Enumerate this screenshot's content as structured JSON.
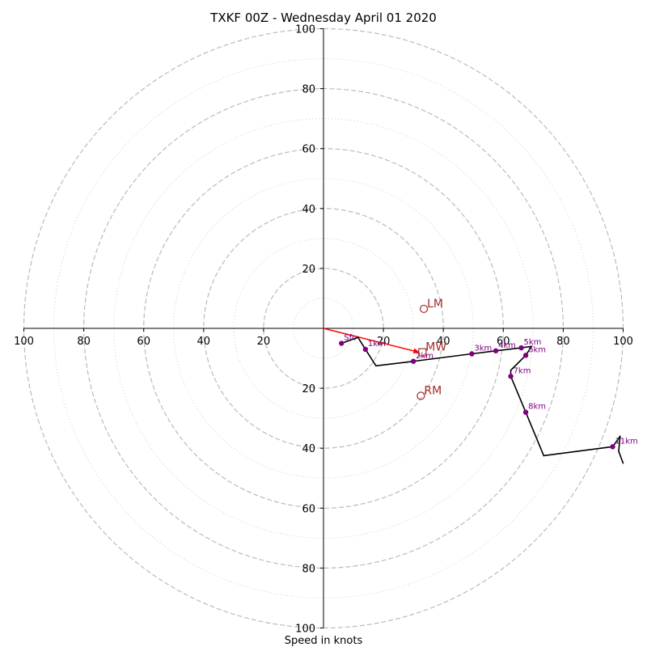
{
  "chart_data": {
    "type": "scatter",
    "title": "TXKF 00Z - Wednesday April 01 2020",
    "xlabel": "Speed in knots",
    "ylabel": "",
    "xlim": [
      -100,
      100
    ],
    "ylim": [
      -100,
      100
    ],
    "rings_major": [
      20,
      40,
      60,
      80,
      100
    ],
    "rings_minor": [
      10,
      30,
      50,
      70,
      90
    ],
    "x_ticks": [
      {
        "value": -100,
        "label": "100"
      },
      {
        "value": -80,
        "label": "80"
      },
      {
        "value": -60,
        "label": "60"
      },
      {
        "value": -40,
        "label": "40"
      },
      {
        "value": -20,
        "label": "20"
      },
      {
        "value": 20,
        "label": "20"
      },
      {
        "value": 40,
        "label": "40"
      },
      {
        "value": 60,
        "label": "60"
      },
      {
        "value": 80,
        "label": "80"
      },
      {
        "value": 100,
        "label": "100"
      }
    ],
    "y_ticks": [
      {
        "value": 100,
        "label": "100"
      },
      {
        "value": 80,
        "label": "80"
      },
      {
        "value": 60,
        "label": "60"
      },
      {
        "value": 40,
        "label": "40"
      },
      {
        "value": 20,
        "label": "20"
      },
      {
        "value": -20,
        "label": "20"
      },
      {
        "value": -40,
        "label": "40"
      },
      {
        "value": -60,
        "label": "60"
      },
      {
        "value": -80,
        "label": "80"
      },
      {
        "value": -100,
        "label": "100"
      }
    ],
    "hodograph": [
      [
        6.0,
        -5.0
      ],
      [
        11.5,
        -3.0
      ],
      [
        14.0,
        -7.0
      ],
      [
        17.5,
        -12.5
      ],
      [
        30.0,
        -11.0
      ],
      [
        49.5,
        -8.5
      ],
      [
        57.5,
        -7.5
      ],
      [
        66.0,
        -6.5
      ],
      [
        69.5,
        -6.0
      ],
      [
        67.5,
        -9.0
      ],
      [
        62.5,
        -14.0
      ],
      [
        62.5,
        -16.0
      ],
      [
        67.5,
        -28.0
      ],
      [
        73.5,
        -42.5
      ],
      [
        96.5,
        -39.5
      ],
      [
        99.0,
        -36.0
      ],
      [
        98.5,
        -41.0
      ],
      [
        100.0,
        -45.0
      ]
    ],
    "levels": [
      {
        "label": "Sfc",
        "x": 6.0,
        "y": -5.0
      },
      {
        "label": "1km",
        "x": 14.0,
        "y": -7.0
      },
      {
        "label": "2km",
        "x": 30.0,
        "y": -11.0
      },
      {
        "label": "3km",
        "x": 49.5,
        "y": -8.5
      },
      {
        "label": "4km",
        "x": 57.5,
        "y": -7.5
      },
      {
        "label": "5km",
        "x": 66.0,
        "y": -6.5
      },
      {
        "label": "6km",
        "x": 67.5,
        "y": -9.0
      },
      {
        "label": "7km",
        "x": 62.5,
        "y": -16.0
      },
      {
        "label": "8km",
        "x": 67.5,
        "y": -28.0
      },
      {
        "label": "11km",
        "x": 96.5,
        "y": -39.5
      }
    ],
    "storm_motion": [
      {
        "label": "LM",
        "x": 33.5,
        "y": 6.5
      },
      {
        "label": "MW",
        "x": 33.0,
        "y": -8.0
      },
      {
        "label": "RM",
        "x": 32.5,
        "y": -22.5
      }
    ],
    "mean_wind_vector": {
      "from": [
        0,
        0
      ],
      "to": [
        32.0,
        -8.0
      ]
    },
    "colors": {
      "hodograph": "#000000",
      "levels": "#800080",
      "storm_motion": "#a52a2a",
      "vector": "#ff0000",
      "ring_major": "#bbbbbb",
      "ring_minor": "#cccccc",
      "axes": "#000000"
    }
  }
}
